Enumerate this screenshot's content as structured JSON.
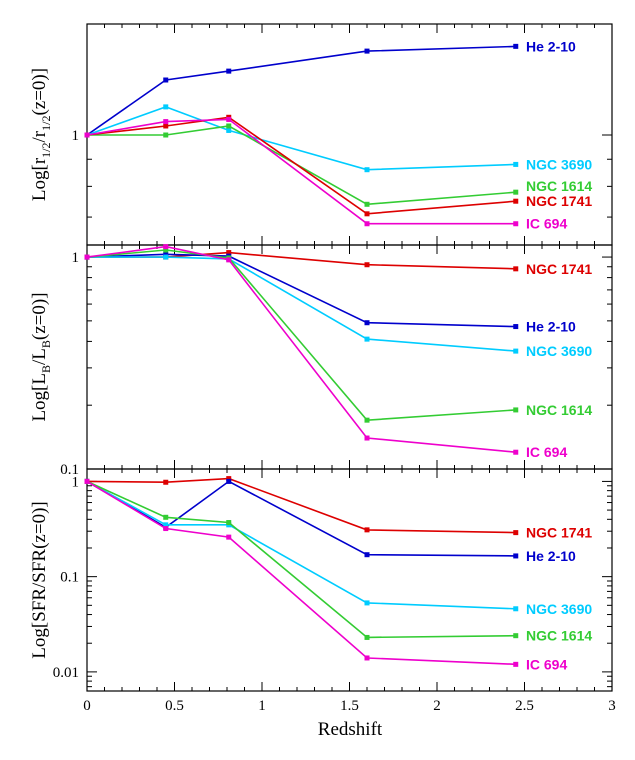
{
  "colors": {
    "He 2-10": "#0000cc",
    "NGC 3690": "#00ccff",
    "NGC 1614": "#33cc33",
    "NGC 1741": "#dd0000",
    "IC 694": "#ee00cc"
  },
  "chart_data": [
    {
      "type": "line",
      "ylabel_main": "Log[r",
      "ylabel_sub1": "1/2",
      "ylabel_mid": "/r",
      "ylabel_sub2": "1/2",
      "ylabel_end": "(z=0)]",
      "yscale": "log",
      "ylim": [
        0.62,
        1.62
      ],
      "yticks": [
        {
          "value": 1,
          "label": "1"
        }
      ],
      "x": [
        0,
        0.45,
        0.81,
        1.6,
        2.45
      ],
      "series": [
        {
          "name": "He 2-10",
          "values": [
            1.0,
            1.27,
            1.32,
            1.44,
            1.47
          ]
        },
        {
          "name": "NGC 3690",
          "values": [
            1.0,
            1.13,
            1.02,
            0.86,
            0.88
          ]
        },
        {
          "name": "NGC 1614",
          "values": [
            1.0,
            1.0,
            1.04,
            0.74,
            0.78
          ]
        },
        {
          "name": "NGC 1741",
          "values": [
            1.0,
            1.04,
            1.08,
            0.71,
            0.75
          ]
        },
        {
          "name": "IC 694",
          "values": [
            1.0,
            1.06,
            1.07,
            0.68,
            0.68
          ]
        }
      ],
      "label_order": [
        "He 2-10",
        "NGC 3690",
        "NGC 1614",
        "NGC 1741",
        "IC 694"
      ]
    },
    {
      "type": "line",
      "ylabel_main": "Log[L",
      "ylabel_sub1": "B",
      "ylabel_mid": "/L",
      "ylabel_sub2": "B",
      "ylabel_end": "(z=0)]",
      "yscale": "log",
      "ylim": [
        0.1,
        1.14
      ],
      "yticks": [
        {
          "value": 1,
          "label": "1"
        },
        {
          "value": 0.1,
          "label": "0.1"
        }
      ],
      "x": [
        0,
        0.45,
        0.81,
        1.6,
        2.45
      ],
      "series": [
        {
          "name": "NGC 1741",
          "values": [
            1.0,
            1.0,
            1.05,
            0.92,
            0.88
          ]
        },
        {
          "name": "He 2-10",
          "values": [
            1.0,
            1.03,
            1.01,
            0.49,
            0.47
          ]
        },
        {
          "name": "NGC 3690",
          "values": [
            1.0,
            1.0,
            0.98,
            0.41,
            0.36
          ]
        },
        {
          "name": "NGC 1614",
          "values": [
            1.0,
            1.08,
            0.99,
            0.17,
            0.19
          ]
        },
        {
          "name": "IC 694",
          "values": [
            1.0,
            1.12,
            0.97,
            0.14,
            0.12
          ]
        }
      ],
      "label_order": [
        "NGC 1741",
        "He 2-10",
        "NGC 3690",
        "NGC 1614",
        "IC 694"
      ]
    },
    {
      "type": "line",
      "ylabel_main": "Log[SFR/SFR(z=0)]",
      "yscale": "log",
      "ylim": [
        0.0063,
        1.35
      ],
      "yticks": [
        {
          "value": 1,
          "label": "1"
        },
        {
          "value": 0.1,
          "label": "0.1"
        },
        {
          "value": 0.01,
          "label": "0.01"
        }
      ],
      "x": [
        0,
        0.45,
        0.81,
        1.6,
        2.45
      ],
      "series": [
        {
          "name": "NGC 1741",
          "values": [
            1.0,
            0.98,
            1.07,
            0.31,
            0.29
          ]
        },
        {
          "name": "He 2-10",
          "values": [
            1.0,
            0.33,
            1.0,
            0.17,
            0.165
          ]
        },
        {
          "name": "NGC 3690",
          "values": [
            1.0,
            0.35,
            0.35,
            0.053,
            0.046
          ]
        },
        {
          "name": "NGC 1614",
          "values": [
            1.0,
            0.42,
            0.37,
            0.023,
            0.024
          ]
        },
        {
          "name": "IC 694",
          "values": [
            1.0,
            0.32,
            0.26,
            0.014,
            0.012
          ]
        }
      ],
      "label_order": [
        "NGC 1741",
        "He 2-10",
        "NGC 3690",
        "NGC 1614",
        "IC 694"
      ]
    }
  ],
  "x_axis": {
    "label": "Redshift",
    "xlim": [
      0,
      3
    ],
    "ticks": [
      {
        "value": 0,
        "label": "0"
      },
      {
        "value": 0.5,
        "label": "0.5"
      },
      {
        "value": 1,
        "label": "1"
      },
      {
        "value": 1.5,
        "label": "1.5"
      },
      {
        "value": 2,
        "label": "2"
      },
      {
        "value": 2.5,
        "label": "2.5"
      },
      {
        "value": 3,
        "label": "3"
      }
    ]
  }
}
